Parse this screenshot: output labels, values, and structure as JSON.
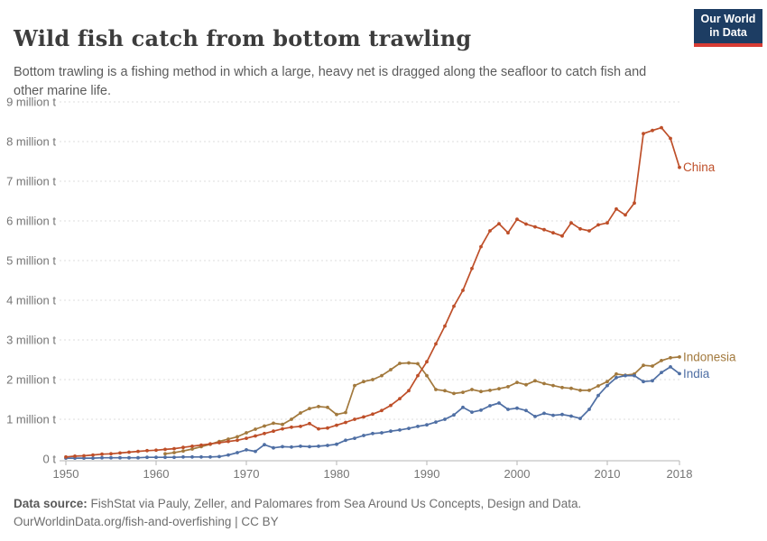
{
  "header": {
    "title": "Wild fish catch from bottom trawling",
    "subtitle": "Bottom trawling is a fishing method in which a large, heavy net is dragged along the seafloor to catch fish and other marine life.",
    "logo": {
      "line1": "Our World",
      "line2": "in Data"
    }
  },
  "footer": {
    "datasource_label": "Data source:",
    "datasource_text": " FishStat via Pauly, Zeller, and Palomares from Sea Around Us Concepts, Design and Data.",
    "link_text": "OurWorldinData.org/fish-and-overfishing",
    "separator": " | ",
    "license": "CC BY"
  },
  "colors": {
    "china": "#be4f29",
    "indonesia": "#a2793d",
    "india": "#4f6fa4",
    "grid": "#dcdcdc",
    "axis": "#b6b6b6",
    "tick_text": "#757575",
    "logo_bg": "#1d3d63",
    "logo_stripe": "#d73c34"
  },
  "chart_data": {
    "type": "line",
    "title": "Wild fish catch from bottom trawling",
    "values_unit": "million t",
    "grid": "dashed-horizontal",
    "legend_position": "end-of-line",
    "x": {
      "min": 1950,
      "max": 2018,
      "ticks": [
        1950,
        1960,
        1970,
        1980,
        1990,
        2000,
        2010,
        2018
      ],
      "tick_labels": [
        "1950",
        "1960",
        "1970",
        "1980",
        "1990",
        "2000",
        "2010",
        "2018"
      ]
    },
    "y": {
      "min": 0,
      "max": 9,
      "tick_interval": 1,
      "tick_labels": [
        "0 t",
        "1 million t",
        "2 million t",
        "3 million t",
        "4 million t",
        "5 million t",
        "6 million t",
        "7 million t",
        "8 million t",
        "9 million t"
      ]
    },
    "series": [
      {
        "name": "Indonesia",
        "color": "#a2793d",
        "start_year": 1961,
        "values": [
          0.13,
          0.16,
          0.2,
          0.25,
          0.31,
          0.37,
          0.44,
          0.5,
          0.56,
          0.66,
          0.75,
          0.83,
          0.9,
          0.87,
          1.0,
          1.16,
          1.27,
          1.32,
          1.3,
          1.12,
          1.17,
          1.85,
          1.95,
          2.0,
          2.1,
          2.25,
          2.41,
          2.42,
          2.4,
          2.1,
          1.75,
          1.72,
          1.65,
          1.68,
          1.75,
          1.7,
          1.73,
          1.77,
          1.82,
          1.93,
          1.87,
          1.97,
          1.9,
          1.85,
          1.8,
          1.78,
          1.73,
          1.73,
          1.84,
          1.95,
          2.14,
          2.11,
          2.14,
          2.36,
          2.34,
          2.48,
          2.55,
          2.57
        ]
      },
      {
        "name": "India",
        "color": "#4f6fa4",
        "start_year": 1950,
        "values": [
          0.02,
          0.02,
          0.02,
          0.02,
          0.03,
          0.03,
          0.03,
          0.03,
          0.03,
          0.04,
          0.04,
          0.04,
          0.04,
          0.05,
          0.05,
          0.05,
          0.05,
          0.06,
          0.1,
          0.16,
          0.23,
          0.19,
          0.36,
          0.28,
          0.31,
          0.3,
          0.32,
          0.31,
          0.32,
          0.34,
          0.37,
          0.47,
          0.52,
          0.59,
          0.64,
          0.66,
          0.7,
          0.73,
          0.77,
          0.82,
          0.86,
          0.93,
          1.0,
          1.11,
          1.3,
          1.18,
          1.23,
          1.34,
          1.41,
          1.25,
          1.28,
          1.22,
          1.07,
          1.15,
          1.1,
          1.12,
          1.08,
          1.02,
          1.25,
          1.6,
          1.85,
          2.05,
          2.1,
          2.1,
          1.95,
          1.97,
          2.18,
          2.32,
          2.15
        ]
      },
      {
        "name": "China",
        "color": "#be4f29",
        "start_year": 1950,
        "values": [
          0.05,
          0.07,
          0.08,
          0.1,
          0.12,
          0.13,
          0.15,
          0.17,
          0.19,
          0.21,
          0.22,
          0.24,
          0.26,
          0.29,
          0.32,
          0.35,
          0.38,
          0.41,
          0.44,
          0.47,
          0.52,
          0.58,
          0.64,
          0.7,
          0.76,
          0.8,
          0.82,
          0.89,
          0.76,
          0.78,
          0.85,
          0.92,
          1.0,
          1.06,
          1.13,
          1.22,
          1.35,
          1.52,
          1.72,
          2.1,
          2.45,
          2.9,
          3.35,
          3.85,
          4.25,
          4.8,
          5.35,
          5.75,
          5.93,
          5.7,
          6.04,
          5.92,
          5.85,
          5.78,
          5.7,
          5.62,
          5.95,
          5.8,
          5.75,
          5.9,
          5.95,
          6.3,
          6.15,
          6.45,
          8.2,
          8.28,
          8.35,
          8.08,
          7.35
        ]
      }
    ]
  }
}
